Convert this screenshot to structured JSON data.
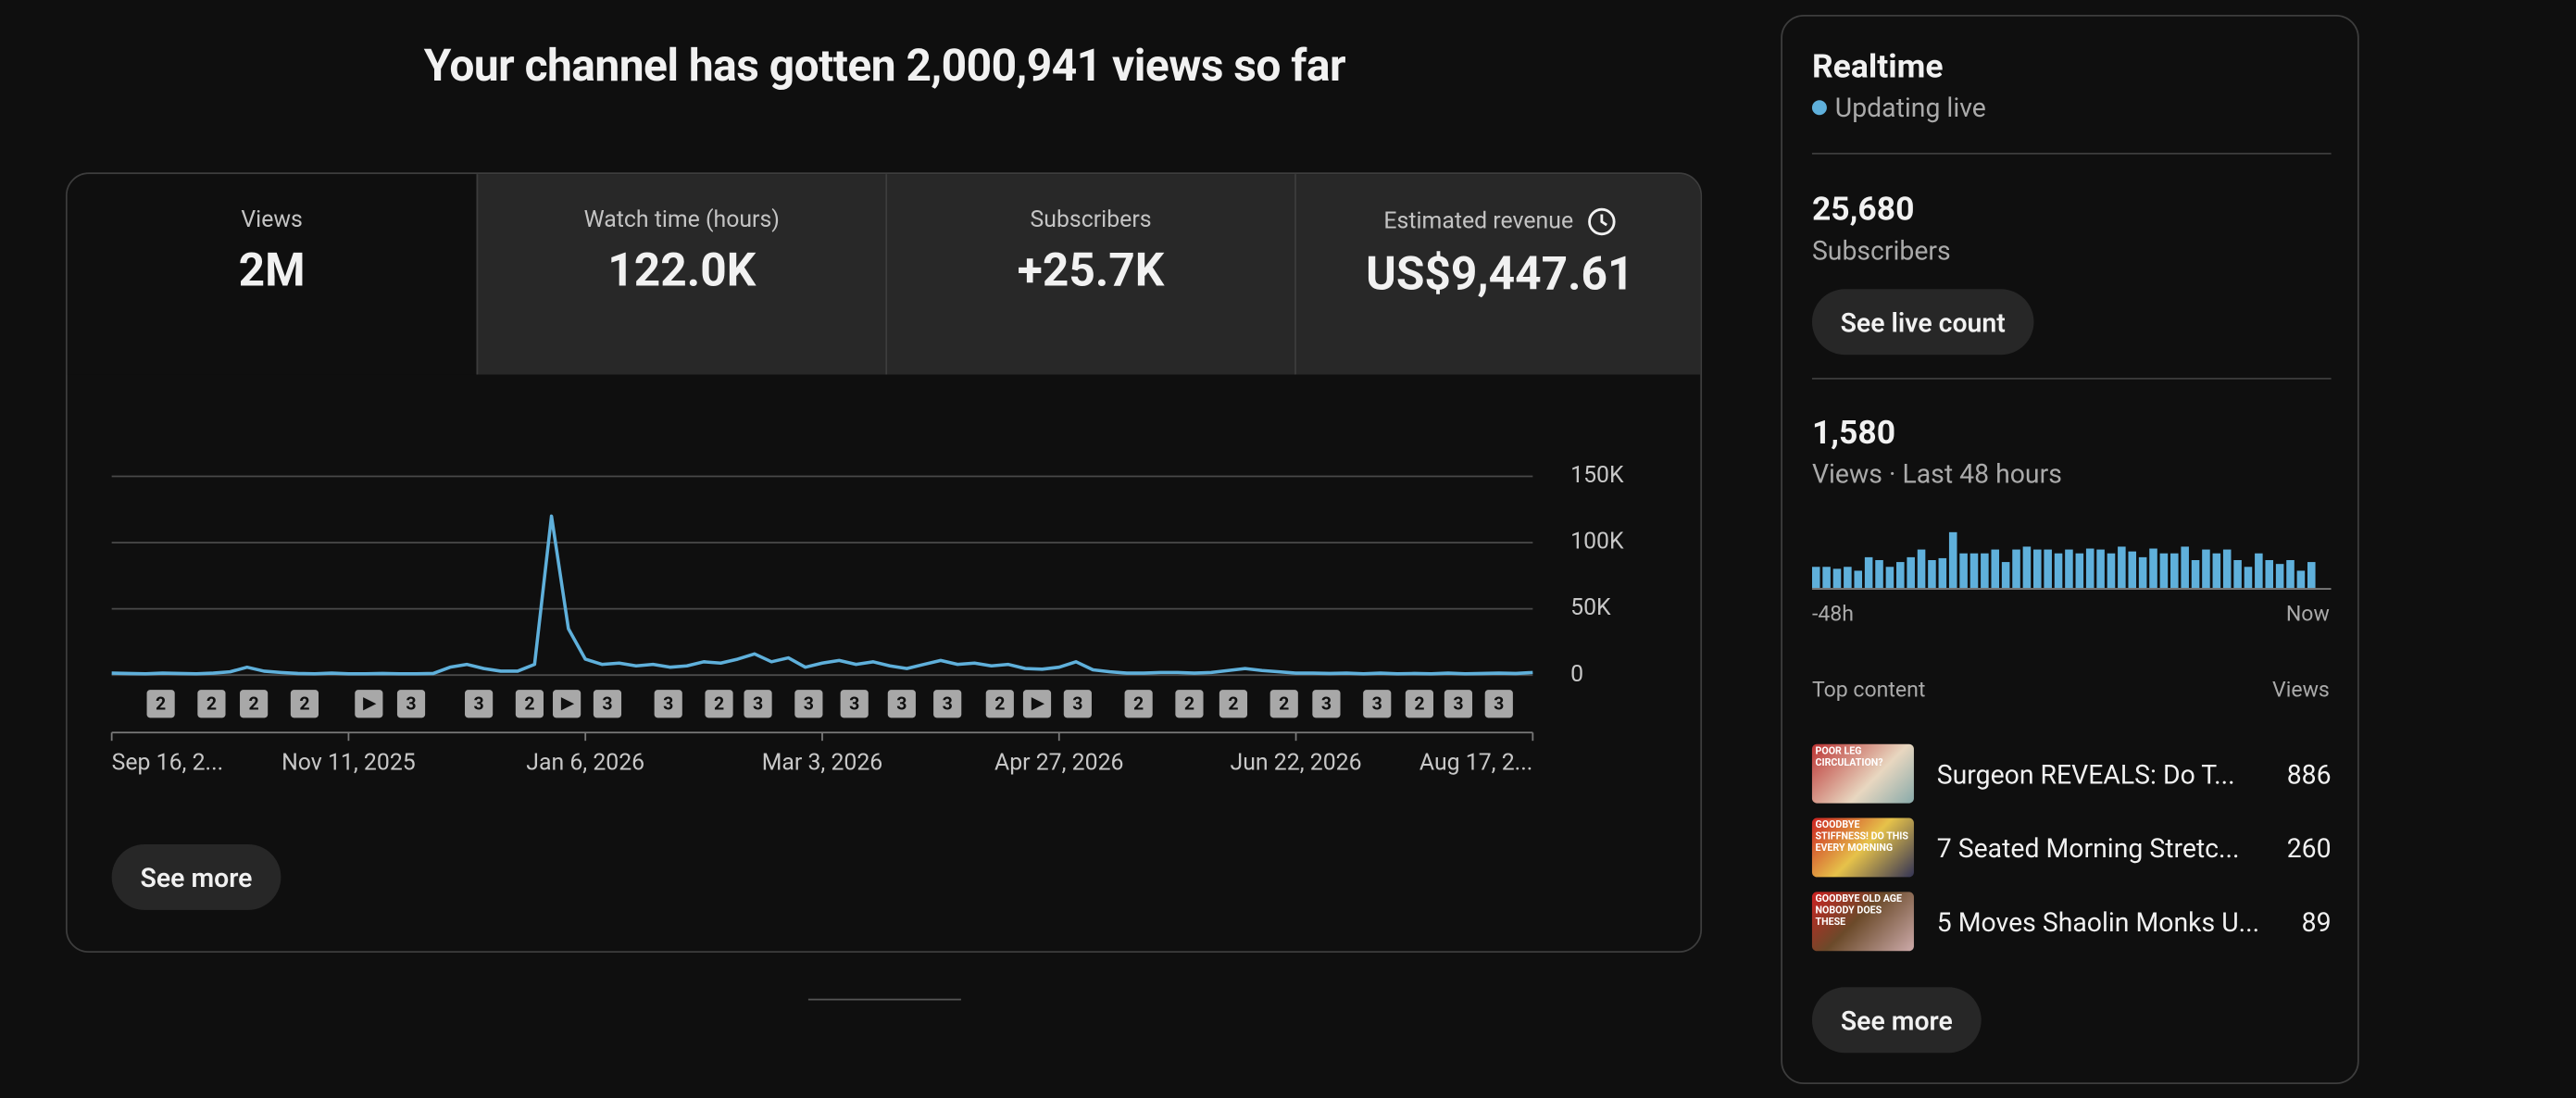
{
  "header": {
    "title": "Your channel has gotten 2,000,941 views so far"
  },
  "metrics": [
    {
      "label": "Views",
      "value": "2M"
    },
    {
      "label": "Watch time (hours)",
      "value": "122.0K"
    },
    {
      "label": "Subscribers",
      "value": "+25.7K"
    },
    {
      "label": "Estimated revenue",
      "value": "US$9,447.61"
    }
  ],
  "chart_data": {
    "type": "line",
    "color": "#5fb0db",
    "values": [
      1500,
      1200,
      1000,
      1500,
      1200,
      1000,
      1500,
      2500,
      6000,
      3000,
      2000,
      1200,
      1000,
      1500,
      1000,
      1000,
      1200,
      1000,
      1000,
      1200,
      6000,
      8000,
      5000,
      3000,
      3000,
      8000,
      120000,
      35000,
      12000,
      8000,
      9000,
      7000,
      8000,
      6000,
      7000,
      10000,
      9000,
      12000,
      16000,
      10000,
      13000,
      6000,
      9000,
      11000,
      8000,
      10000,
      7000,
      5000,
      8000,
      11000,
      8000,
      9000,
      7000,
      8000,
      5000,
      4500,
      6000,
      10000,
      4000,
      2500,
      1500,
      1500,
      2000,
      2000,
      1500,
      2000,
      3500,
      5000,
      3500,
      2500,
      1500,
      1500,
      1200,
      1500,
      1000,
      1500,
      1000,
      1200,
      1000,
      1500,
      1000,
      1200,
      1500,
      1200,
      2000
    ],
    "xlim": [
      0,
      84
    ],
    "xticks": [
      {
        "value": 0,
        "label": "Sep 16, 2..."
      },
      {
        "value": 14,
        "label": "Nov 11, 2025"
      },
      {
        "value": 28,
        "label": "Jan 6, 2026"
      },
      {
        "value": 42,
        "label": "Mar 3, 2026"
      },
      {
        "value": 56,
        "label": "Apr 27, 2026"
      },
      {
        "value": 70,
        "label": "Jun 22, 2026"
      },
      {
        "value": 84,
        "label": "Aug 17, 2..."
      }
    ],
    "ylim": [
      0,
      150000
    ],
    "yticks": [
      0,
      {
        "value": 50000,
        "label": "50K"
      },
      {
        "value": 100000,
        "label": "100K"
      },
      {
        "value": 150000,
        "label": "150K"
      }
    ],
    "grid": true,
    "annotations": [
      {
        "x": 2.9,
        "label": "2"
      },
      {
        "x": 5.9,
        "label": "2"
      },
      {
        "x": 8.4,
        "label": "2"
      },
      {
        "x": 11.4,
        "label": "2"
      },
      {
        "x": 15.2,
        "label": null
      },
      {
        "x": 17.7,
        "label": "3"
      },
      {
        "x": 21.7,
        "label": "3"
      },
      {
        "x": 24.7,
        "label": "2"
      },
      {
        "x": 26.9,
        "label": null
      },
      {
        "x": 29.3,
        "label": "3"
      },
      {
        "x": 32.9,
        "label": "3"
      },
      {
        "x": 35.9,
        "label": "2"
      },
      {
        "x": 38.2,
        "label": "3"
      },
      {
        "x": 41.2,
        "label": "3"
      },
      {
        "x": 43.9,
        "label": "3"
      },
      {
        "x": 46.7,
        "label": "3"
      },
      {
        "x": 49.4,
        "label": "3"
      },
      {
        "x": 52.5,
        "label": "2"
      },
      {
        "x": 54.7,
        "label": null
      },
      {
        "x": 57.1,
        "label": "3"
      },
      {
        "x": 60.7,
        "label": "2"
      },
      {
        "x": 63.7,
        "label": "2"
      },
      {
        "x": 66.3,
        "label": "2"
      },
      {
        "x": 69.3,
        "label": "2"
      },
      {
        "x": 71.8,
        "label": "3"
      },
      {
        "x": 74.8,
        "label": "3"
      },
      {
        "x": 77.3,
        "label": "2"
      },
      {
        "x": 79.6,
        "label": "3"
      },
      {
        "x": 82.0,
        "label": "3"
      }
    ]
  },
  "see_more": "See more",
  "realtime": {
    "title": "Realtime",
    "status": "Updating live",
    "subscribers": {
      "value": "25,680",
      "label": "Subscribers",
      "button": "See live count"
    },
    "views": {
      "value": "1,580",
      "label": "Views · Last 48 hours",
      "chart_data": {
        "type": "bar",
        "color": "#5fb0db",
        "values": [
          22,
          22,
          20,
          22,
          18,
          32,
          29,
          22,
          27,
          32,
          40,
          29,
          31,
          58,
          36,
          36,
          36,
          40,
          27,
          40,
          43,
          40,
          40,
          36,
          40,
          36,
          41,
          40,
          36,
          43,
          38,
          32,
          41,
          36,
          36,
          43,
          29,
          40,
          36,
          40,
          29,
          22,
          36,
          29,
          25,
          29,
          18,
          27
        ],
        "x_start": "-48h",
        "x_end": "Now"
      }
    },
    "top_content": {
      "header": "Top content",
      "views_header": "Views",
      "items": [
        {
          "title": "Surgeon REVEALS: Do T...",
          "views": 886,
          "thumb_text": "POOR LEG CIRCULATION?"
        },
        {
          "title": "7 Seated Morning Stretc...",
          "views": 260,
          "thumb_text": "GOODBYE STIFFNESS! DO THIS EVERY MORNING"
        },
        {
          "title": "5 Moves Shaolin Monks U...",
          "views": 89,
          "thumb_text": "GOODBYE OLD AGE NOBODY DOES THESE"
        }
      ]
    },
    "button": "See more"
  }
}
